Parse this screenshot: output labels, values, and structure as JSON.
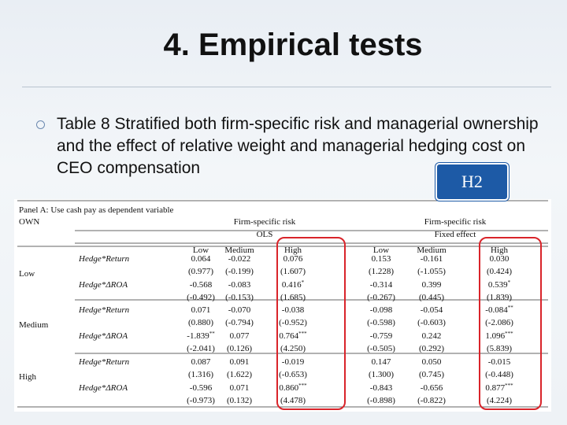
{
  "slide": {
    "title": "4. Empirical tests",
    "bullet": "Table 8 Stratified both firm-specific risk and managerial ownership and the effect of relative weight and managerial hedging cost on CEO compensation"
  },
  "badge": {
    "label": "H2",
    "color": "#1d5aa6"
  },
  "table": {
    "panel_title": "Panel A: Use cash pay as dependent variable",
    "row_header": "OWN",
    "groups": [
      {
        "title": "Firm-specific risk",
        "method": "OLS"
      },
      {
        "title": "Firm-specific risk",
        "method": "Fixed effect"
      }
    ],
    "columns": [
      "Low",
      "Medium",
      "High",
      "Low",
      "Medium",
      "High"
    ],
    "blocks": [
      {
        "own": "Low",
        "rows": [
          {
            "var": "Hedge*Return",
            "coef": [
              [
                "0.064",
                ""
              ],
              [
                "-0.022",
                ""
              ],
              [
                "0.076",
                ""
              ],
              [
                "0.153",
                ""
              ],
              [
                "-0.161",
                ""
              ],
              [
                "0.030",
                ""
              ]
            ],
            "t": [
              "(0.977)",
              "(-0.199)",
              "(1.607)",
              "(1.228)",
              "(-1.055)",
              "(0.424)"
            ]
          },
          {
            "var": "Hedge*ΔROA",
            "coef": [
              [
                "-0.568",
                ""
              ],
              [
                "-0.083",
                ""
              ],
              [
                "0.416",
                "*"
              ],
              [
                "-0.314",
                ""
              ],
              [
                "0.399",
                ""
              ],
              [
                "0.539",
                "*"
              ]
            ],
            "t": [
              "(-0.492)",
              "(-0.153)",
              "(1.685)",
              "(-0.267)",
              "(0.445)",
              "(1.839)"
            ]
          }
        ]
      },
      {
        "own": "Medium",
        "rows": [
          {
            "var": "Hedge*Return",
            "coef": [
              [
                "0.071",
                ""
              ],
              [
                "-0.070",
                ""
              ],
              [
                "-0.038",
                ""
              ],
              [
                "-0.098",
                ""
              ],
              [
                "-0.054",
                ""
              ],
              [
                "-0.084",
                "**"
              ]
            ],
            "t": [
              "(0.880)",
              "(-0.794)",
              "(-0.952)",
              "(-0.598)",
              "(-0.603)",
              "(-2.086)"
            ]
          },
          {
            "var": "Hedge*ΔROA",
            "coef": [
              [
                "-1.839",
                "**"
              ],
              [
                "0.077",
                ""
              ],
              [
                "0.764",
                "***"
              ],
              [
                "-0.759",
                ""
              ],
              [
                "0.242",
                ""
              ],
              [
                "1.096",
                "***"
              ]
            ],
            "t": [
              "(-2.041)",
              "(0.126)",
              "(4.250)",
              "(-0.505)",
              "(0.292)",
              "(5.839)"
            ]
          }
        ]
      },
      {
        "own": "High",
        "rows": [
          {
            "var": "Hedge*Return",
            "coef": [
              [
                "0.087",
                ""
              ],
              [
                "0.091",
                ""
              ],
              [
                "-0.019",
                ""
              ],
              [
                "0.147",
                ""
              ],
              [
                "0.050",
                ""
              ],
              [
                "-0.015",
                ""
              ]
            ],
            "t": [
              "(1.316)",
              "(1.622)",
              "(-0.653)",
              "(1.300)",
              "(0.745)",
              "(-0.448)"
            ]
          },
          {
            "var": "Hedge*ΔROA",
            "coef": [
              [
                "-0.596",
                ""
              ],
              [
                "0.071",
                ""
              ],
              [
                "0.860",
                "***"
              ],
              [
                "-0.843",
                ""
              ],
              [
                "-0.656",
                ""
              ],
              [
                "0.877",
                "***"
              ]
            ],
            "t": [
              "(-0.973)",
              "(0.132)",
              "(4.478)",
              "(-0.898)",
              "(-0.822)",
              "(4.224)"
            ]
          }
        ]
      }
    ],
    "highlight_color": "#d9242a"
  }
}
